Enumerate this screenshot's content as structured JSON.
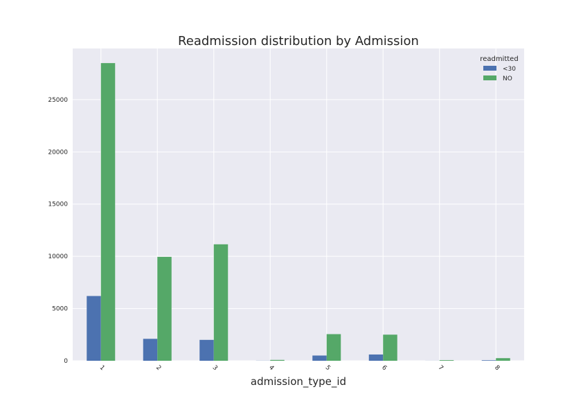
{
  "chart_data": {
    "type": "bar",
    "title": "Readmission distribution by Admission",
    "xlabel": "admission_type_id",
    "ylabel": "",
    "categories": [
      "1",
      "2",
      "3",
      "4",
      "5",
      "6",
      "7",
      "8"
    ],
    "series": [
      {
        "name": "<30",
        "values": [
          6200,
          2100,
          2000,
          10,
          500,
          600,
          5,
          50
        ]
      },
      {
        "name": "NO",
        "values": [
          28500,
          9950,
          11150,
          80,
          2550,
          2500,
          60,
          250
        ]
      }
    ],
    "ylim": [
      0,
      29900
    ],
    "yticks": [
      0,
      5000,
      10000,
      15000,
      20000,
      25000
    ],
    "grid": true,
    "legend": {
      "title": "readmitted",
      "placement": "top-right"
    },
    "colors": {
      "<30": "#4c72b0",
      "NO": "#55a868",
      "background": "#eaeaf2",
      "grid": "#ffffff"
    }
  }
}
